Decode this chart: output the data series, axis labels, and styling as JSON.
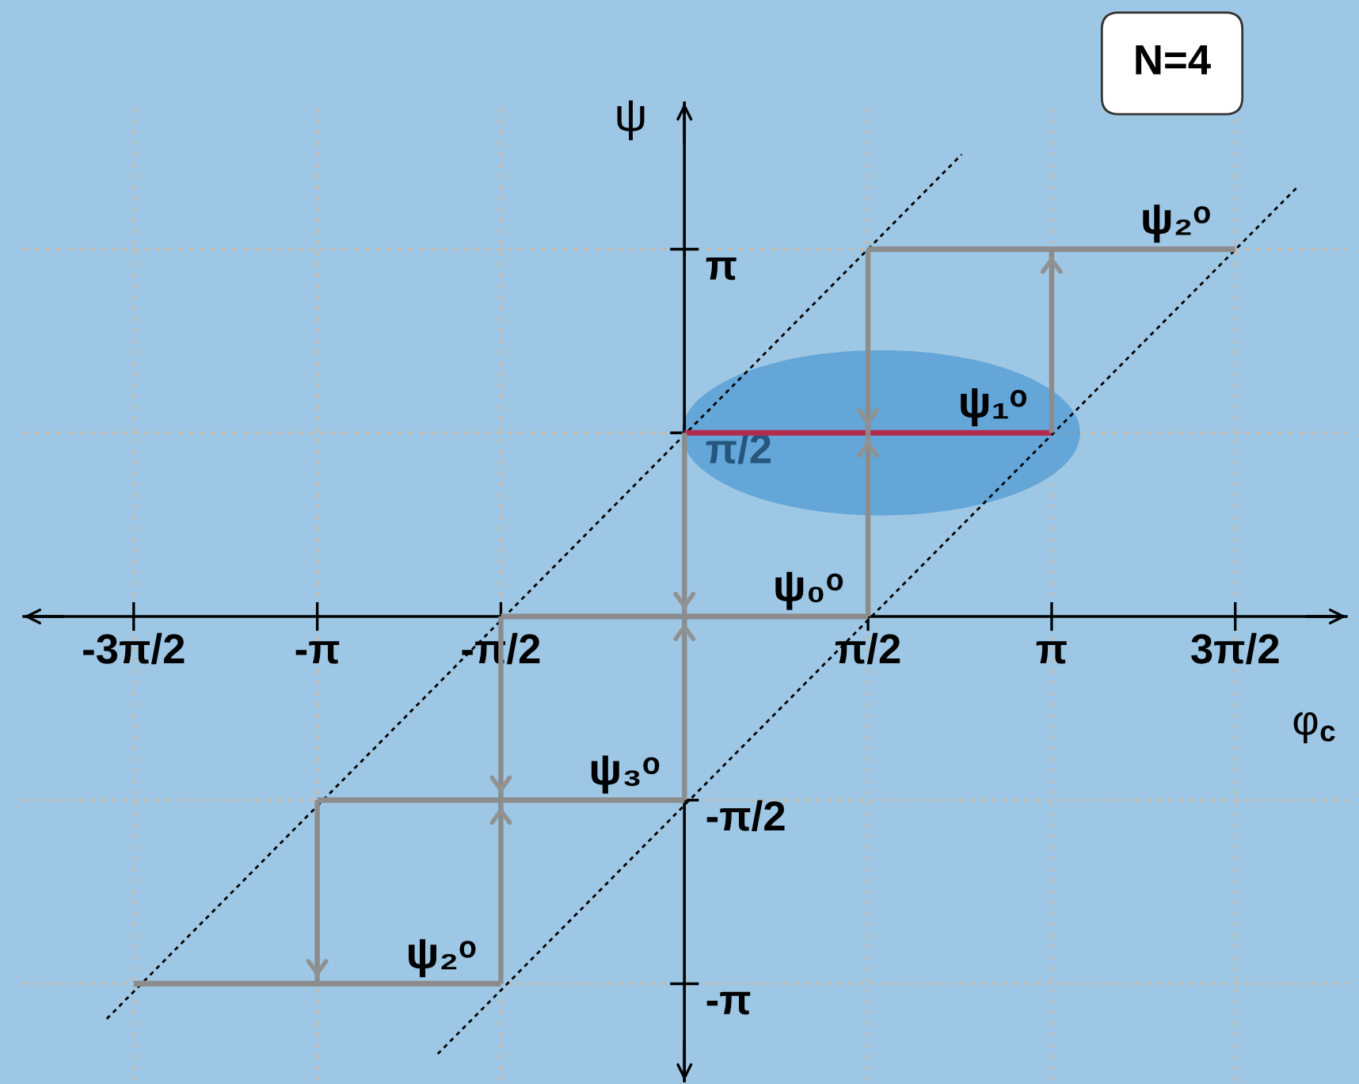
{
  "chart_data": {
    "type": "line",
    "xlabel": "φ$_{c}$",
    "ylabel": "ψ",
    "xlim": [
      -5.65,
      5.66
    ],
    "ylim": [
      -3.97,
      4.39
    ],
    "xticks": [
      {
        "value": -4.71,
        "label": "-3π/2"
      },
      {
        "value": -3.14,
        "label": "-π"
      },
      {
        "value": -1.57,
        "label": "-π/2"
      },
      {
        "value": 1.57,
        "label": "π/2"
      },
      {
        "value": 3.14,
        "label": "π"
      },
      {
        "value": 4.71,
        "label": "3π/2"
      }
    ],
    "yticks": [
      {
        "value": -3.14,
        "label": "-π"
      },
      {
        "value": -1.57,
        "label": "-π/2"
      },
      {
        "value": 1.57,
        "label": "π/2"
      },
      {
        "value": 3.14,
        "label": "π"
      }
    ],
    "grid": true,
    "line_style": "solid",
    "series": [
      {
        "color": "#8c8c8c",
        "x": [
          -4.71,
          -1.57,
          null,
          -3.14,
          0,
          null,
          -1.57,
          1.57,
          null,
          1.57,
          4.71
        ],
        "values": [
          -3.14,
          -3.14,
          null,
          -1.57,
          -1.57,
          null,
          0,
          0,
          null,
          3.14,
          3.14
        ]
      },
      {
        "color": "#b22a4c",
        "x": [
          0,
          3.14
        ],
        "values": [
          1.57,
          1.57
        ]
      },
      {
        "type": "bar",
        "color": "#8c8c8c",
        "x": [
          -3.14,
          -1.57,
          0,
          1.57
        ],
        "base": [
          -1.57,
          0,
          1.57,
          3.14
        ],
        "values": [
          -1.57,
          -1.57,
          -1.57,
          -1.57
        ]
      },
      {
        "type": "bar",
        "color": "#8c8c8c",
        "x": [
          -1.57,
          0,
          1.57,
          3.14
        ],
        "base": [
          -3.14,
          -1.57,
          0,
          1.57
        ],
        "values": [
          1.57,
          1.57,
          1.57,
          1.57
        ]
      },
      {
        "color": "#000000",
        "line_style": "dotted",
        "x": [
          -4.94,
          2.37
        ],
        "values": [
          -3.44,
          3.95
        ]
      },
      {
        "color": "#000000",
        "line_style": "dotted",
        "x": [
          -2.11,
          5.25
        ],
        "values": [
          -3.74,
          3.68
        ]
      }
    ],
    "annotations": [
      "N=4",
      {
        "text": "ψ₂ᵒ",
        "x": 4.71,
        "y": 3.14
      },
      {
        "text": "ψ₁ᵒ",
        "x": 3.14,
        "y": 1.57
      },
      {
        "text": "ψ₀ᵒ",
        "x": 1.57,
        "y": 0
      },
      {
        "text": "ψ₃ᵒ",
        "x": 0,
        "y": -1.57
      },
      {
        "text": "ψ₂ᵒ",
        "x": -1.57,
        "y": -3.14
      }
    ]
  }
}
